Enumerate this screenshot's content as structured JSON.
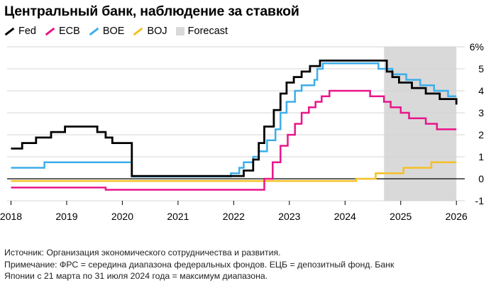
{
  "chart_data": {
    "type": "line",
    "title": "Центральный банк, наблюдение за ставкой",
    "legend": [
      {
        "name": "Fed",
        "color": "#000000",
        "kind": "line"
      },
      {
        "name": "ECB",
        "color": "#e8158a",
        "kind": "line"
      },
      {
        "name": "BOE",
        "color": "#3daee9",
        "kind": "line"
      },
      {
        "name": "BOJ",
        "color": "#f5c026",
        "kind": "line"
      },
      {
        "name": "Forecast",
        "color": "#d9d9d9",
        "kind": "box"
      }
    ],
    "legend_position": "top-left",
    "forecast_region": {
      "start": 2024.7,
      "end": 2026.0
    },
    "x_ticks": [
      "2018",
      "2019",
      "2020",
      "2021",
      "2022",
      "2023",
      "2024",
      "2025",
      "2026"
    ],
    "xlim": [
      2017.93,
      2026.15
    ],
    "y_ticks": [
      "6%",
      "5",
      "4",
      "3",
      "2",
      "1",
      "0",
      "-1"
    ],
    "ylim": [
      -1,
      6
    ],
    "grid": "horizontal",
    "series": [
      {
        "name": "Fed",
        "color": "#000000",
        "points": [
          [
            2018.0,
            1.375
          ],
          [
            2018.2,
            1.625
          ],
          [
            2018.45,
            1.875
          ],
          [
            2018.72,
            2.125
          ],
          [
            2018.97,
            2.375
          ],
          [
            2019.55,
            2.125
          ],
          [
            2019.7,
            1.875
          ],
          [
            2019.82,
            1.625
          ],
          [
            2020.17,
            0.125
          ],
          [
            2022.18,
            0.375
          ],
          [
            2022.35,
            0.875
          ],
          [
            2022.45,
            1.625
          ],
          [
            2022.55,
            2.375
          ],
          [
            2022.72,
            3.125
          ],
          [
            2022.84,
            3.875
          ],
          [
            2022.95,
            4.375
          ],
          [
            2023.08,
            4.625
          ],
          [
            2023.22,
            4.875
          ],
          [
            2023.37,
            5.125
          ],
          [
            2023.55,
            5.375
          ],
          [
            2024.7,
            5.375
          ],
          [
            2024.75,
            4.875
          ],
          [
            2024.85,
            4.625
          ],
          [
            2024.97,
            4.375
          ],
          [
            2025.2,
            4.125
          ],
          [
            2025.45,
            3.875
          ],
          [
            2025.7,
            3.625
          ],
          [
            2026.0,
            3.375
          ]
        ]
      },
      {
        "name": "ECB",
        "color": "#e8158a",
        "points": [
          [
            2018.0,
            -0.4
          ],
          [
            2019.7,
            -0.5
          ],
          [
            2022.55,
            0.0
          ],
          [
            2022.7,
            0.75
          ],
          [
            2022.84,
            1.5
          ],
          [
            2022.97,
            2.0
          ],
          [
            2023.1,
            2.5
          ],
          [
            2023.22,
            3.0
          ],
          [
            2023.35,
            3.25
          ],
          [
            2023.47,
            3.5
          ],
          [
            2023.58,
            3.75
          ],
          [
            2023.72,
            4.0
          ],
          [
            2024.45,
            3.75
          ],
          [
            2024.7,
            3.5
          ],
          [
            2024.82,
            3.25
          ],
          [
            2025.0,
            3.0
          ],
          [
            2025.15,
            2.75
          ],
          [
            2025.45,
            2.5
          ],
          [
            2025.65,
            2.25
          ],
          [
            2026.0,
            2.25
          ]
        ]
      },
      {
        "name": "BOE",
        "color": "#3daee9",
        "points": [
          [
            2018.0,
            0.5
          ],
          [
            2018.6,
            0.75
          ],
          [
            2020.17,
            0.1
          ],
          [
            2021.95,
            0.25
          ],
          [
            2022.1,
            0.5
          ],
          [
            2022.18,
            0.75
          ],
          [
            2022.35,
            1.0
          ],
          [
            2022.45,
            1.25
          ],
          [
            2022.6,
            1.75
          ],
          [
            2022.75,
            2.25
          ],
          [
            2022.84,
            3.0
          ],
          [
            2022.95,
            3.5
          ],
          [
            2023.1,
            4.0
          ],
          [
            2023.22,
            4.25
          ],
          [
            2023.45,
            4.5
          ],
          [
            2023.5,
            5.0
          ],
          [
            2023.6,
            5.25
          ],
          [
            2024.6,
            5.0
          ],
          [
            2024.85,
            4.75
          ],
          [
            2025.1,
            4.5
          ],
          [
            2025.35,
            4.25
          ],
          [
            2025.6,
            4.0
          ],
          [
            2025.85,
            3.75
          ],
          [
            2026.0,
            3.75
          ]
        ]
      },
      {
        "name": "BOJ",
        "color": "#f5c026",
        "points": [
          [
            2018.0,
            -0.1
          ],
          [
            2024.2,
            0.0
          ],
          [
            2024.55,
            0.25
          ],
          [
            2025.05,
            0.5
          ],
          [
            2025.55,
            0.75
          ],
          [
            2026.0,
            0.75
          ]
        ]
      }
    ]
  },
  "footer": {
    "source": "Источник: Организация экономического сотрудничества и развития.",
    "note_line1": "Примечание: ФРС = середина диапазона федеральных фондов. ЕЦБ = депозитный фонд. Банк",
    "note_line2": "Японии с 21 марта по 31 июля 2024 года = максимум диапазона."
  }
}
